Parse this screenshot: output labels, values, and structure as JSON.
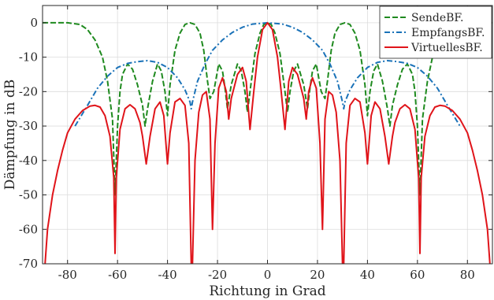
{
  "chart_data": {
    "type": "line",
    "title": "",
    "xlabel": "Richtung in Grad",
    "ylabel": "Dämpfung in dB",
    "xlim": [
      -90,
      90
    ],
    "ylim": [
      -70,
      5
    ],
    "xticks": [
      -80,
      -60,
      -40,
      -20,
      0,
      20,
      40,
      60,
      80
    ],
    "yticks": [
      0,
      -10,
      -20,
      -30,
      -40,
      -50,
      -60,
      -70
    ],
    "grid": true,
    "legend_position": "top-right",
    "series": [
      {
        "name": "SendeBF.",
        "color": "#2ca02c",
        "display_color": "#1f8a1f",
        "style": "dashed",
        "values": [
          [
            -90,
            0
          ],
          [
            -80,
            0
          ],
          [
            -75,
            -0.5
          ],
          [
            -72,
            -2
          ],
          [
            -69,
            -5
          ],
          [
            -66,
            -10
          ],
          [
            -64,
            -17
          ],
          [
            -62,
            -28
          ],
          [
            -61,
            -50
          ],
          [
            -60,
            -30
          ],
          [
            -59,
            -20
          ],
          [
            -58,
            -15
          ],
          [
            -56,
            -12
          ],
          [
            -54,
            -13.5
          ],
          [
            -52,
            -18
          ],
          [
            -50,
            -24
          ],
          [
            -49,
            -30
          ],
          [
            -48,
            -25
          ],
          [
            -46,
            -17
          ],
          [
            -44,
            -12
          ],
          [
            -42.5,
            -14
          ],
          [
            -41,
            -20
          ],
          [
            -40,
            -27
          ],
          [
            -39,
            -18
          ],
          [
            -37,
            -8
          ],
          [
            -35,
            -3
          ],
          [
            -33,
            -0.5
          ],
          [
            -31,
            0
          ],
          [
            -29,
            -0.5
          ],
          [
            -27,
            -3
          ],
          [
            -25.5,
            -8
          ],
          [
            -24,
            -17
          ],
          [
            -23,
            -22
          ],
          [
            -21.5,
            -20
          ],
          [
            -19.5,
            -12
          ],
          [
            -18,
            -14
          ],
          [
            -17,
            -19
          ],
          [
            -16,
            -25
          ],
          [
            -14.5,
            -18
          ],
          [
            -12,
            -12
          ],
          [
            -10.5,
            -14
          ],
          [
            -9,
            -20
          ],
          [
            -8,
            -26
          ],
          [
            -7,
            -20
          ],
          [
            -5,
            -9
          ],
          [
            -3,
            -3
          ],
          [
            -1.5,
            -0.5
          ],
          [
            0,
            0
          ],
          [
            1.5,
            -0.5
          ],
          [
            3,
            -3
          ],
          [
            5,
            -9
          ],
          [
            7,
            -20
          ],
          [
            8,
            -26
          ],
          [
            9,
            -20
          ],
          [
            10.5,
            -14
          ],
          [
            12,
            -12
          ],
          [
            14.5,
            -18
          ],
          [
            16,
            -25
          ],
          [
            17,
            -19
          ],
          [
            18,
            -14
          ],
          [
            19.5,
            -12
          ],
          [
            21.5,
            -20
          ],
          [
            23,
            -22
          ],
          [
            24,
            -17
          ],
          [
            25.5,
            -8
          ],
          [
            27,
            -3
          ],
          [
            29,
            -0.5
          ],
          [
            31,
            0
          ],
          [
            33,
            -0.5
          ],
          [
            35,
            -3
          ],
          [
            37,
            -8
          ],
          [
            39,
            -18
          ],
          [
            40,
            -27
          ],
          [
            41,
            -20
          ],
          [
            42.5,
            -14
          ],
          [
            44,
            -12
          ],
          [
            46,
            -17
          ],
          [
            48,
            -25
          ],
          [
            49,
            -30
          ],
          [
            50,
            -24
          ],
          [
            52,
            -18
          ],
          [
            54,
            -13.5
          ],
          [
            56,
            -12
          ],
          [
            58,
            -15
          ],
          [
            59,
            -20
          ],
          [
            60,
            -30
          ],
          [
            61,
            -50
          ],
          [
            62,
            -28
          ],
          [
            64,
            -17
          ],
          [
            66,
            -10
          ],
          [
            69,
            -5
          ],
          [
            72,
            -2
          ],
          [
            75,
            -0.5
          ],
          [
            80,
            0
          ],
          [
            90,
            0
          ]
        ]
      },
      {
        "name": "EmpfangsBF.",
        "color": "#1f77b4",
        "display_color": "#1a72b8",
        "style": "dashdot",
        "values": [
          [
            -77,
            -30
          ],
          [
            -72,
            -24
          ],
          [
            -68,
            -19
          ],
          [
            -64,
            -15.5
          ],
          [
            -60,
            -13
          ],
          [
            -56,
            -11.8
          ],
          [
            -52,
            -11.3
          ],
          [
            -48,
            -11
          ],
          [
            -44,
            -11.5
          ],
          [
            -40,
            -13
          ],
          [
            -36,
            -16
          ],
          [
            -33,
            -19.5
          ],
          [
            -31,
            -23
          ],
          [
            -30.5,
            -25
          ],
          [
            -30,
            -23
          ],
          [
            -28,
            -17
          ],
          [
            -25,
            -12
          ],
          [
            -22,
            -8
          ],
          [
            -18,
            -5
          ],
          [
            -14,
            -2.8
          ],
          [
            -10,
            -1.3
          ],
          [
            -6,
            -0.4
          ],
          [
            0,
            0
          ],
          [
            6,
            -0.4
          ],
          [
            10,
            -1.3
          ],
          [
            14,
            -2.8
          ],
          [
            18,
            -5
          ],
          [
            22,
            -8
          ],
          [
            25,
            -12
          ],
          [
            28,
            -17
          ],
          [
            30,
            -23
          ],
          [
            30.5,
            -25
          ],
          [
            31,
            -23
          ],
          [
            33,
            -19.5
          ],
          [
            36,
            -16
          ],
          [
            40,
            -13
          ],
          [
            44,
            -11.5
          ],
          [
            48,
            -11
          ],
          [
            52,
            -11.3
          ],
          [
            56,
            -11.8
          ],
          [
            60,
            -13
          ],
          [
            64,
            -15.5
          ],
          [
            68,
            -19
          ],
          [
            72,
            -24
          ],
          [
            77,
            -30
          ]
        ]
      },
      {
        "name": "VirtuellesBF.",
        "color": "#d62728",
        "display_color": "#e0141a",
        "style": "solid",
        "values": [
          [
            -89,
            -70
          ],
          [
            -88,
            -60
          ],
          [
            -86,
            -50
          ],
          [
            -84,
            -43
          ],
          [
            -82,
            -37
          ],
          [
            -80,
            -32
          ],
          [
            -77,
            -28
          ],
          [
            -74,
            -25.5
          ],
          [
            -71,
            -24.2
          ],
          [
            -69,
            -24
          ],
          [
            -67,
            -24.5
          ],
          [
            -65,
            -27
          ],
          [
            -63,
            -33
          ],
          [
            -61.5,
            -45
          ],
          [
            -61,
            -67
          ],
          [
            -60.5,
            -45
          ],
          [
            -59,
            -31
          ],
          [
            -57,
            -25
          ],
          [
            -55,
            -23.8
          ],
          [
            -53,
            -25
          ],
          [
            -51,
            -29
          ],
          [
            -50,
            -33
          ],
          [
            -48.5,
            -41
          ],
          [
            -47,
            -33
          ],
          [
            -45,
            -25
          ],
          [
            -43,
            -23
          ],
          [
            -41.5,
            -27
          ],
          [
            -40,
            -41
          ],
          [
            -39,
            -32
          ],
          [
            -37,
            -23
          ],
          [
            -35,
            -22
          ],
          [
            -33,
            -24
          ],
          [
            -31.5,
            -35
          ],
          [
            -30.5,
            -70
          ],
          [
            -30,
            -70
          ],
          [
            -29,
            -40
          ],
          [
            -27.5,
            -26
          ],
          [
            -26,
            -21
          ],
          [
            -24.5,
            -20
          ],
          [
            -23,
            -28
          ],
          [
            -22,
            -60
          ],
          [
            -21,
            -35
          ],
          [
            -19.5,
            -19
          ],
          [
            -18,
            -16
          ],
          [
            -16.5,
            -20
          ],
          [
            -15.5,
            -28
          ],
          [
            -14.5,
            -22
          ],
          [
            -12,
            -15
          ],
          [
            -10,
            -13
          ],
          [
            -8.5,
            -17
          ],
          [
            -7,
            -31
          ],
          [
            -5.5,
            -20
          ],
          [
            -4,
            -10
          ],
          [
            -2,
            -2
          ],
          [
            0,
            0
          ],
          [
            2,
            -2
          ],
          [
            4,
            -10
          ],
          [
            5.5,
            -20
          ],
          [
            7,
            -31
          ],
          [
            8.5,
            -17
          ],
          [
            10,
            -13
          ],
          [
            12,
            -15
          ],
          [
            14.5,
            -22
          ],
          [
            15.5,
            -28
          ],
          [
            16.5,
            -20
          ],
          [
            18,
            -16
          ],
          [
            19.5,
            -19
          ],
          [
            21,
            -35
          ],
          [
            22,
            -60
          ],
          [
            23,
            -28
          ],
          [
            24.5,
            -20
          ],
          [
            26,
            -21
          ],
          [
            27.5,
            -26
          ],
          [
            29,
            -40
          ],
          [
            30,
            -70
          ],
          [
            30.5,
            -70
          ],
          [
            31.5,
            -35
          ],
          [
            33,
            -24
          ],
          [
            35,
            -22
          ],
          [
            37,
            -23
          ],
          [
            39,
            -32
          ],
          [
            40,
            -41
          ],
          [
            41.5,
            -27
          ],
          [
            43,
            -23
          ],
          [
            45,
            -25
          ],
          [
            47,
            -33
          ],
          [
            48.5,
            -41
          ],
          [
            50,
            -33
          ],
          [
            51,
            -29
          ],
          [
            53,
            -25
          ],
          [
            55,
            -23.8
          ],
          [
            57,
            -25
          ],
          [
            59,
            -31
          ],
          [
            60.5,
            -45
          ],
          [
            61,
            -67
          ],
          [
            61.5,
            -45
          ],
          [
            63,
            -33
          ],
          [
            65,
            -27
          ],
          [
            67,
            -24.5
          ],
          [
            69,
            -24
          ],
          [
            71,
            -24.2
          ],
          [
            74,
            -25.5
          ],
          [
            77,
            -28
          ],
          [
            80,
            -32
          ],
          [
            82,
            -37
          ],
          [
            84,
            -43
          ],
          [
            86,
            -50
          ],
          [
            88,
            -60
          ],
          [
            89,
            -70
          ]
        ]
      }
    ]
  }
}
